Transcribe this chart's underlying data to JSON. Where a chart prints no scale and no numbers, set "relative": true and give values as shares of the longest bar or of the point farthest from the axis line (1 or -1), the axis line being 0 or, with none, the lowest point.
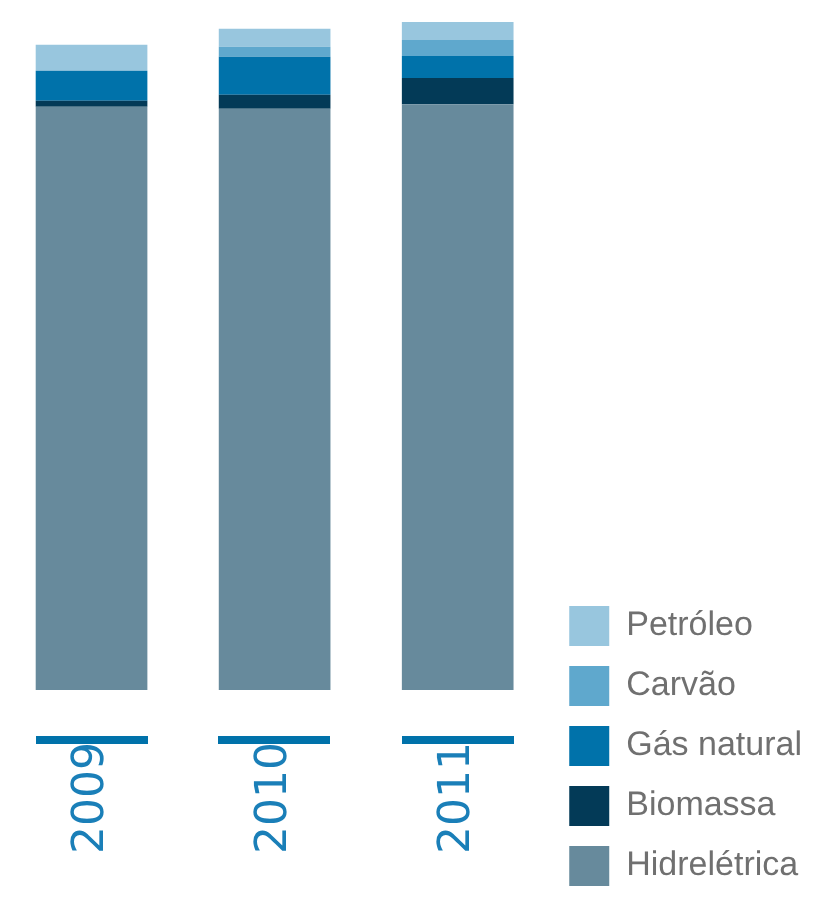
{
  "chart_data": {
    "type": "bar",
    "stacked": true,
    "relative": true,
    "legend": "right",
    "categories": [
      "2009",
      "2010",
      "2011"
    ],
    "series": [
      {
        "name": "Hidrelétrica",
        "color": "#678a9c",
        "values": [
          0.873,
          0.87,
          0.877
        ]
      },
      {
        "name": "Biomassa",
        "color": "#033a57",
        "values": [
          0.009,
          0.021,
          0.039
        ]
      },
      {
        "name": "Gás natural",
        "color": "#0072aa",
        "values": [
          0.045,
          0.057,
          0.033
        ]
      },
      {
        "name": "Carvão",
        "color": "#5fa8cd",
        "values": [
          0,
          0.015,
          0.024
        ]
      },
      {
        "name": "Petróleo",
        "color": "#98c6de",
        "values": [
          0.039,
          0.027,
          0.027
        ]
      }
    ]
  }
}
